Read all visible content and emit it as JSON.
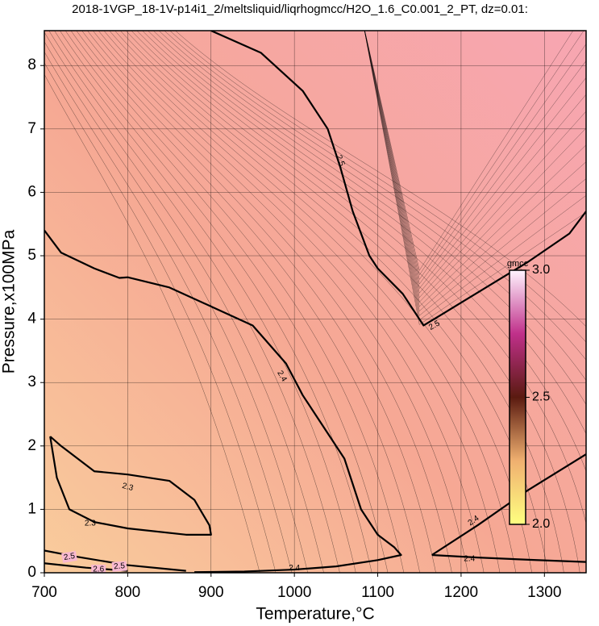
{
  "chart_data": {
    "type": "contour",
    "title": "2018-1VGP_18-1V-p14i1_2/meltsliquid/liqrhogmcc/H2O_1.6_C0.001_2_PT, dz=0.01:",
    "xlabel": "Temperature,°C",
    "ylabel": "Pressure,x100MPa",
    "xlim": [
      700,
      1350
    ],
    "xticks": [
      700,
      800,
      900,
      1000,
      1100,
      1200,
      1300
    ],
    "ylim": [
      0,
      8.55
    ],
    "yticks": [
      0,
      1,
      2,
      3,
      4,
      5,
      6,
      7,
      8
    ],
    "grid": true,
    "contours": [
      {
        "level": 2.5,
        "x": [
          900,
          960,
          1010,
          1040,
          1055,
          1070,
          1090,
          1100,
          1130,
          1155,
          1180,
          1230,
          1280,
          1330,
          1350
        ],
        "y": [
          8.55,
          8.2,
          7.6,
          7.0,
          6.4,
          5.7,
          5.0,
          4.8,
          4.4,
          3.9,
          4.1,
          4.5,
          4.9,
          5.35,
          5.7
        ]
      },
      {
        "level": 2.4,
        "x": [
          700,
          720,
          760,
          790,
          800,
          850,
          900,
          950,
          990,
          1010,
          1030,
          1060,
          1080,
          1100,
          1120,
          1128,
          1100,
          1050,
          1000,
          940,
          880
        ],
        "y": [
          5.4,
          5.05,
          4.8,
          4.65,
          4.66,
          4.5,
          4.2,
          3.9,
          3.3,
          2.8,
          2.4,
          1.8,
          1.0,
          0.6,
          0.4,
          0.28,
          0.2,
          0.1,
          0.05,
          0.02,
          0.01
        ]
      },
      {
        "level": 2.4,
        "x": [
          1165,
          1220,
          1280,
          1350
        ],
        "y": [
          0.28,
          0.75,
          1.3,
          1.87
        ]
      },
      {
        "level": 2.4,
        "x": [
          1165,
          1220,
          1290,
          1350
        ],
        "y": [
          0.28,
          0.24,
          0.2,
          0.17
        ]
      },
      {
        "level": 2.3,
        "x": [
          707,
          720,
          750,
          760,
          800,
          850,
          880,
          898,
          900,
          870,
          800,
          760,
          730,
          715,
          707
        ],
        "y": [
          2.15,
          2.0,
          1.7,
          1.6,
          1.55,
          1.45,
          1.15,
          0.75,
          0.6,
          0.6,
          0.7,
          0.8,
          1.0,
          1.5,
          2.15
        ]
      },
      {
        "level": 2.5,
        "x": [
          700,
          740,
          800,
          870
        ],
        "y": [
          0.35,
          0.25,
          0.12,
          0.03
        ]
      },
      {
        "level": 2.6,
        "x": [
          700,
          750,
          800
        ],
        "y": [
          0.15,
          0.08,
          0.03
        ]
      }
    ],
    "colorbar": {
      "label": "gmcc",
      "lim": [
        2,
        3
      ],
      "ticks": [
        {
          "value": 2,
          "label": "2.0"
        },
        2.5,
        {
          "value": 3,
          "label": "3.0"
        }
      ]
    }
  }
}
